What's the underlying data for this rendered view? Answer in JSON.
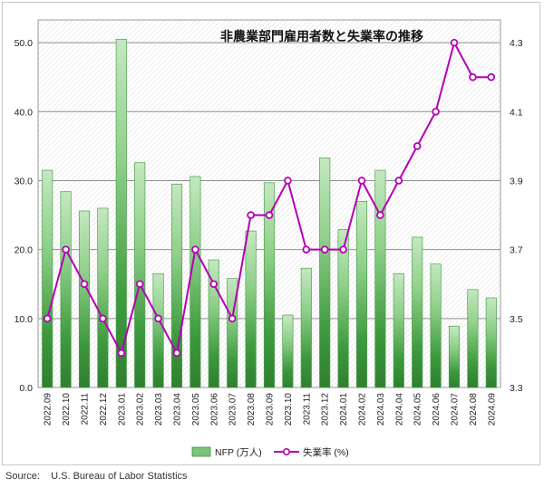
{
  "chart_data": {
    "type": "bar",
    "title": "非農業部門雇用者数と失業率の推移",
    "categories": [
      "2022.09",
      "2022.10",
      "2022.11",
      "2022.12",
      "2023.01",
      "2023.02",
      "2023.03",
      "2023.04",
      "2023.05",
      "2023.06",
      "2023.07",
      "2023.08",
      "2023.09",
      "2023.10",
      "2023.11",
      "2023.12",
      "2024.01",
      "2024.02",
      "2024.03",
      "2024.04",
      "2024.05",
      "2024.06",
      "2024.07",
      "2024.08",
      "2024.09"
    ],
    "series": [
      {
        "name": "NFP (万人)",
        "type": "bar",
        "axis": "left",
        "color": "#7bc47b",
        "values": [
          31.5,
          28.4,
          25.6,
          26.0,
          50.5,
          32.6,
          16.5,
          29.5,
          30.6,
          18.5,
          15.8,
          22.7,
          29.7,
          10.5,
          17.3,
          33.3,
          22.9,
          27.0,
          31.5,
          16.5,
          21.8,
          17.9,
          8.9,
          14.2,
          13.0
        ]
      },
      {
        "name": "失業率 (%)",
        "type": "line",
        "axis": "right",
        "color": "#b400b4",
        "values": [
          3.5,
          3.7,
          3.6,
          3.5,
          3.4,
          3.6,
          3.5,
          3.4,
          3.7,
          3.6,
          3.5,
          3.8,
          3.8,
          3.9,
          3.7,
          3.7,
          3.7,
          3.9,
          3.8,
          3.9,
          4.0,
          4.1,
          4.3,
          4.2,
          4.2
        ]
      }
    ],
    "y_left": {
      "min": 0,
      "max": 53.3,
      "ticks": [
        "0.0",
        "10.0",
        "20.0",
        "30.0",
        "40.0",
        "50.0"
      ]
    },
    "y_right": {
      "min": 3.3,
      "max": 4.366,
      "ticks": [
        "3.3",
        "3.5",
        "3.7",
        "3.9",
        "4.1",
        "4.3"
      ]
    },
    "grid": true,
    "legend_position": "bottom"
  },
  "source": "Source:    U.S. Bureau of Labor Statistics"
}
